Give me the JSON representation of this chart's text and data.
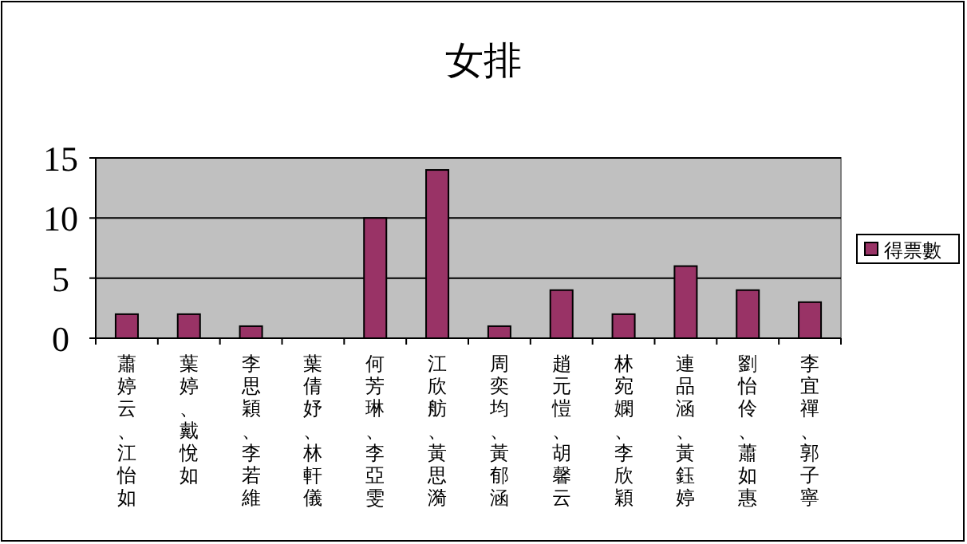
{
  "chart_data": {
    "type": "bar",
    "title": "女排",
    "categories": [
      "蕭婷云、江怡如",
      "葉婷、戴悅如",
      "李思穎、李若維",
      "葉倩妤、林軒儀",
      "何芳琳、李亞雯",
      "江欣舫、黃思漪",
      "周奕均、黃郁涵",
      "趙元愷、胡馨云",
      "林宛嫻、李欣穎",
      "連品涵、黃鈺婷",
      "劉怡伶、蕭如惠",
      "李宜禪、郭子寧"
    ],
    "series": [
      {
        "name": "得票數",
        "color": "#993366",
        "values": [
          2,
          2,
          1,
          0,
          10,
          14,
          1,
          4,
          2,
          6,
          4,
          3
        ]
      }
    ],
    "ylim": [
      0,
      15
    ],
    "yticks": [
      0,
      5,
      10,
      15
    ],
    "grid": "y",
    "legend": "right"
  }
}
